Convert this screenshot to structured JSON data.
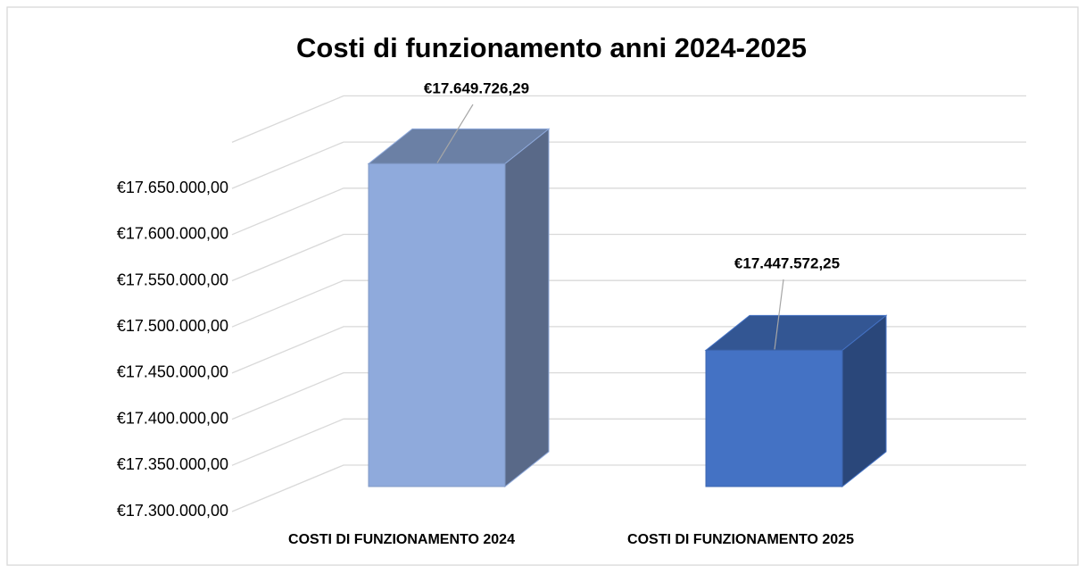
{
  "chart_data": {
    "type": "bar3d",
    "title": "Costi di funzionamento anni 2024-2025",
    "categories": [
      "COSTI DI FUNZIONAMENTO 2024",
      "COSTI DI FUNZIONAMENTO 2025"
    ],
    "values": [
      17649726.29,
      17447572.25
    ],
    "value_labels": [
      "€17.649.726,29",
      "€17.447.572,25"
    ],
    "colors": [
      "#8faadc",
      "#4472c4"
    ],
    "ylim": [
      17300000,
      17700000
    ],
    "yticks": [
      {
        "value": 17300000,
        "label": "€17.300.000,00"
      },
      {
        "value": 17350000,
        "label": "€17.350.000,00"
      },
      {
        "value": 17400000,
        "label": "€17.400.000,00"
      },
      {
        "value": 17450000,
        "label": "€17.450.000,00"
      },
      {
        "value": 17500000,
        "label": "€17.500.000,00"
      },
      {
        "value": 17550000,
        "label": "€17.550.000,00"
      },
      {
        "value": 17600000,
        "label": "€17.600.000,00"
      },
      {
        "value": 17650000,
        "label": "€17.650.000,00"
      }
    ],
    "grid": true
  }
}
